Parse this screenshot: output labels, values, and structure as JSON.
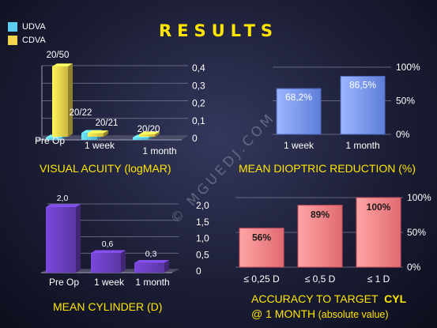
{
  "slide": {
    "title": "RESULTS",
    "legend": [
      {
        "label": "UDVA",
        "color": "#5ecbf0"
      },
      {
        "label": "CDVA",
        "color": "#f1d54c"
      }
    ],
    "watermark": "© MGUEDJ.COM",
    "caption_line1": "@ 1 MONTH",
    "caption_line2": "(absolute value)"
  },
  "chart_data": [
    {
      "type": "bar",
      "title": "VISUAL ACUITY (logMAR)",
      "categories": [
        "Pre Op",
        "1 week",
        "1 month"
      ],
      "series": [
        {
          "name": "UDVA",
          "values": [
            0.0,
            0.04,
            0.01
          ]
        },
        {
          "name": "CDVA",
          "values": [
            0.4,
            0.02,
            0.0
          ]
        }
      ],
      "data_labels": [
        "20/50",
        "20/22",
        "20/21",
        "20/20"
      ],
      "ylim": [
        0,
        0.4
      ],
      "yticks": [
        "0,4",
        "0,3",
        "0,2",
        "0,1",
        "0"
      ],
      "grid": true
    },
    {
      "type": "bar",
      "title": "MEAN DIOPTRIC REDUCTION (%)",
      "categories": [
        "1 week",
        "1 month"
      ],
      "values": [
        68.2,
        86.5
      ],
      "data_labels": [
        "68,2%",
        "86,5%"
      ],
      "ylim": [
        0,
        100
      ],
      "yticks": [
        "100%",
        "50%",
        "0%"
      ],
      "grid": true
    },
    {
      "type": "bar",
      "title": "MEAN CYLINDER (D)",
      "categories": [
        "Pre Op",
        "1 week",
        "1 month"
      ],
      "values": [
        2.0,
        0.6,
        0.3
      ],
      "data_labels": [
        "2,0",
        "0,6",
        "0,3"
      ],
      "ylim": [
        0,
        2.0
      ],
      "yticks": [
        "2,0",
        "1,5",
        "1,0",
        "0,5",
        "0"
      ],
      "grid": true
    },
    {
      "type": "bar",
      "title": "ACCURACY TO TARGET",
      "title_emphasis": "CYL",
      "categories": [
        "≤ 0,25 D",
        "≤ 0,5 D",
        "≤ 1 D"
      ],
      "values": [
        56,
        89,
        100
      ],
      "data_labels": [
        "56%",
        "89%",
        "100%"
      ],
      "ylim": [
        0,
        100
      ],
      "yticks": [
        "100%",
        "50%",
        "0%"
      ],
      "grid": true
    }
  ]
}
